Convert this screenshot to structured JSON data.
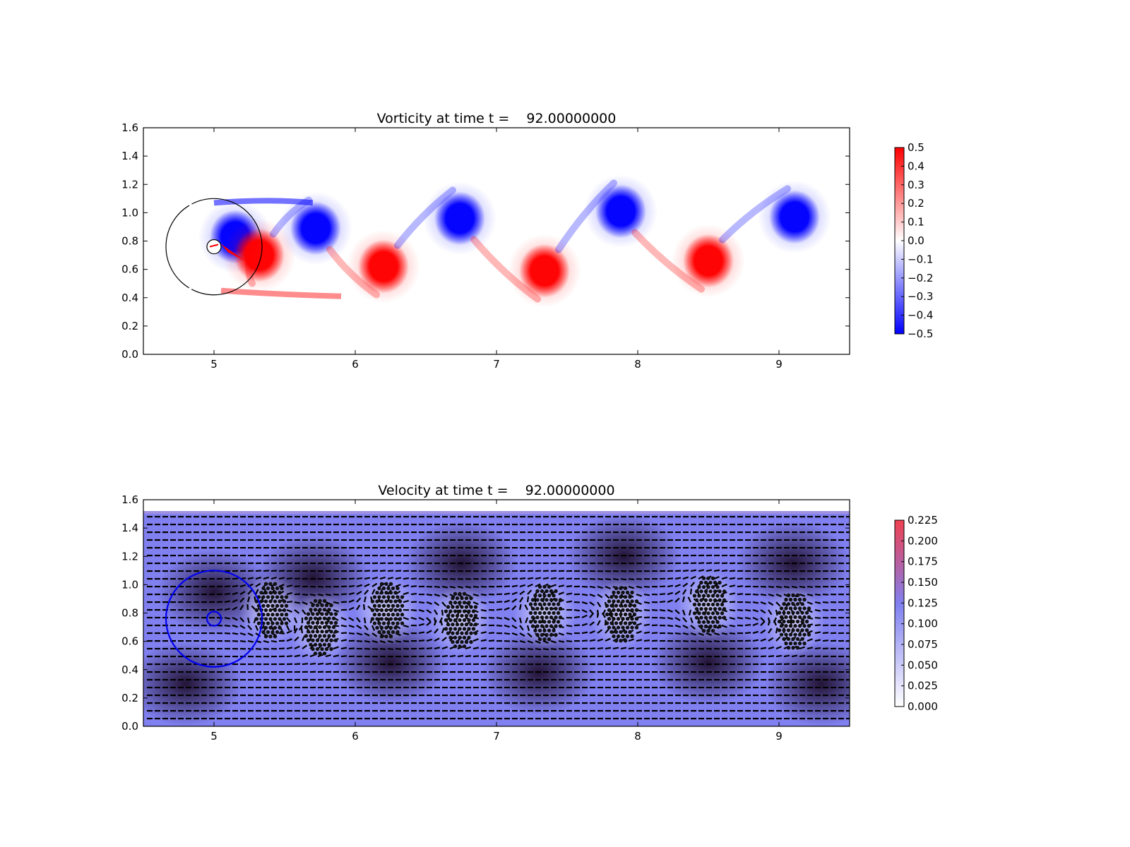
{
  "colors": {
    "positive_vorticity": "#ff0000",
    "negative_vorticity": "#0000ff",
    "velocity_low": "#ffffff",
    "velocity_mid": "#8080f0",
    "velocity_high": "#f04050",
    "circle_top": "#000000",
    "circle_bottom": "#0000ee",
    "arrows": "#000000"
  },
  "chart_data": [
    {
      "type": "heatmap",
      "title": "Vorticity at time t =    92.00000000",
      "xlabel": "",
      "ylabel": "",
      "xlim": [
        4.5,
        9.5
      ],
      "ylim": [
        0.0,
        1.6
      ],
      "xticks": [
        "5",
        "6",
        "7",
        "8",
        "9"
      ],
      "yticks": [
        "0.0",
        "0.2",
        "0.4",
        "0.6",
        "0.8",
        "1.0",
        "1.2",
        "1.4",
        "1.6"
      ],
      "colormap": "bwr",
      "colorbar": {
        "range": [
          -0.5,
          0.5
        ],
        "ticks": [
          "0.5",
          "0.4",
          "0.3",
          "0.2",
          "0.1",
          "0.0",
          "−0.1",
          "−0.2",
          "−0.3",
          "−0.4",
          "−0.5"
        ]
      },
      "vortices": [
        {
          "x": 5.15,
          "y": 0.83,
          "sign": -1,
          "strength": 0.5
        },
        {
          "x": 5.32,
          "y": 0.7,
          "sign": 1,
          "strength": 0.45
        },
        {
          "x": 5.72,
          "y": 0.89,
          "sign": -1,
          "strength": 0.5
        },
        {
          "x": 6.2,
          "y": 0.62,
          "sign": 1,
          "strength": 0.5
        },
        {
          "x": 6.74,
          "y": 0.96,
          "sign": -1,
          "strength": 0.5
        },
        {
          "x": 7.34,
          "y": 0.59,
          "sign": 1,
          "strength": 0.5
        },
        {
          "x": 7.88,
          "y": 1.01,
          "sign": -1,
          "strength": 0.5
        },
        {
          "x": 8.5,
          "y": 0.66,
          "sign": 1,
          "strength": 0.5
        },
        {
          "x": 9.11,
          "y": 0.97,
          "sign": -1,
          "strength": 0.5
        }
      ],
      "cylinder": {
        "x": 5.0,
        "y": 0.76,
        "r": 0.05
      },
      "circle": {
        "x": 5.0,
        "y": 0.76,
        "r": 0.34
      },
      "grid": false
    },
    {
      "type": "quiver",
      "title": "Velocity at time t =    92.00000000",
      "xlabel": "",
      "ylabel": "",
      "xlim": [
        4.5,
        9.5
      ],
      "ylim": [
        0.0,
        1.6
      ],
      "xticks": [
        "5",
        "6",
        "7",
        "8",
        "9"
      ],
      "yticks": [
        "0.0",
        "0.2",
        "0.4",
        "0.6",
        "0.8",
        "1.0",
        "1.2",
        "1.4",
        "1.6"
      ],
      "field_top": 1.52,
      "colorbar": {
        "range": [
          0.0,
          0.225
        ],
        "ticks": [
          "0.225",
          "0.200",
          "0.175",
          "0.150",
          "0.125",
          "0.100",
          "0.075",
          "0.050",
          "0.025",
          "0.000"
        ]
      },
      "particle_clusters": [
        {
          "x": 5.4,
          "y": 0.82
        },
        {
          "x": 5.75,
          "y": 0.7
        },
        {
          "x": 6.22,
          "y": 0.82
        },
        {
          "x": 6.74,
          "y": 0.75
        },
        {
          "x": 7.34,
          "y": 0.8
        },
        {
          "x": 7.88,
          "y": 0.79
        },
        {
          "x": 8.5,
          "y": 0.86
        },
        {
          "x": 9.1,
          "y": 0.74
        }
      ],
      "cylinder": {
        "x": 5.0,
        "y": 0.76,
        "r": 0.05
      },
      "circle": {
        "x": 5.0,
        "y": 0.76,
        "r": 0.34
      },
      "grid": false
    }
  ]
}
